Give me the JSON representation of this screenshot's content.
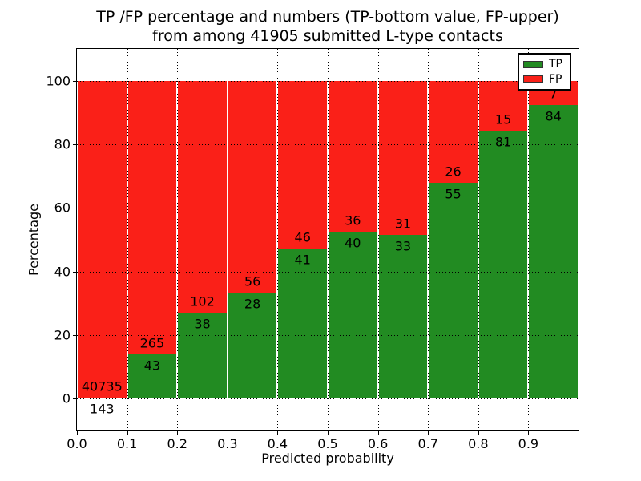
{
  "figure": {
    "title_line1": "TP /FP percentage and numbers (TP-bottom value, FP-upper)",
    "title_line2": "from among 41905 submitted L-type contacts",
    "xlabel": "Predicted probability",
    "ylabel": "Percentage",
    "total_contacts": 41905
  },
  "legend": {
    "position": "upper right",
    "items": [
      {
        "label": "TP",
        "color": "#228b22"
      },
      {
        "label": "FP",
        "color": "#fa2018"
      }
    ]
  },
  "chart_data": {
    "type": "bar",
    "stacked": true,
    "normalized": "each bin stacked to 100%",
    "title": "TP /FP percentage and numbers (TP-bottom value, FP-upper) from among 41905 submitted L-type contacts",
    "xlabel": "Predicted probability",
    "ylabel": "Percentage",
    "xlim": [
      0.0,
      1.0
    ],
    "ylim": [
      -10,
      110
    ],
    "grid": true,
    "legend_position": "upper right",
    "bin_width": 0.1,
    "x_tick_labels": [
      "0.0",
      "0.1",
      "0.2",
      "0.3",
      "0.4",
      "0.5",
      "0.6",
      "0.7",
      "0.8",
      "0.9"
    ],
    "y_tick_values": [
      0,
      20,
      40,
      60,
      80,
      100
    ],
    "y_tick_labels": [
      "0",
      "20",
      "40",
      "60",
      "80",
      "100"
    ],
    "series": [
      {
        "name": "TP",
        "color": "#228b22",
        "counts": [
          143,
          43,
          38,
          28,
          41,
          40,
          33,
          55,
          81,
          84
        ]
      },
      {
        "name": "FP",
        "color": "#fa2018",
        "counts": [
          40735,
          265,
          102,
          56,
          46,
          36,
          31,
          26,
          15,
          7
        ]
      }
    ],
    "bins": [
      {
        "x_start": 0.0,
        "x_end": 0.1,
        "tp": 143,
        "fp": 40735,
        "tp_percent": 0.35
      },
      {
        "x_start": 0.1,
        "x_end": 0.2,
        "tp": 43,
        "fp": 265,
        "tp_percent": 13.96
      },
      {
        "x_start": 0.2,
        "x_end": 0.3,
        "tp": 38,
        "fp": 102,
        "tp_percent": 27.14
      },
      {
        "x_start": 0.3,
        "x_end": 0.4,
        "tp": 28,
        "fp": 56,
        "tp_percent": 33.33
      },
      {
        "x_start": 0.4,
        "x_end": 0.5,
        "tp": 41,
        "fp": 46,
        "tp_percent": 47.13
      },
      {
        "x_start": 0.5,
        "x_end": 0.6,
        "tp": 40,
        "fp": 36,
        "tp_percent": 52.63
      },
      {
        "x_start": 0.6,
        "x_end": 0.7,
        "tp": 33,
        "fp": 31,
        "tp_percent": 51.56
      },
      {
        "x_start": 0.7,
        "x_end": 0.8,
        "tp": 55,
        "fp": 26,
        "tp_percent": 67.9
      },
      {
        "x_start": 0.8,
        "x_end": 0.9,
        "tp": 81,
        "fp": 15,
        "tp_percent": 84.38
      },
      {
        "x_start": 0.9,
        "x_end": 1.0,
        "tp": 84,
        "fp": 7,
        "tp_percent": 92.31
      }
    ]
  }
}
